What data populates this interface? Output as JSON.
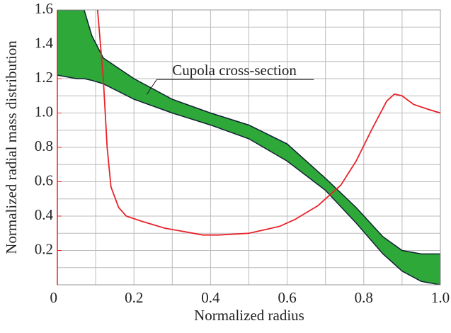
{
  "chart_data": {
    "type": "line",
    "xlabel": "Normalized radius",
    "ylabel": "Normalized radial mass distribution",
    "annotation": {
      "text": "Cupola cross-section",
      "x": 0.3,
      "y": 1.24
    },
    "xlim": [
      0,
      1.0
    ],
    "ylim": [
      0,
      1.6
    ],
    "xticks": [
      0,
      0.2,
      0.4,
      0.6,
      0.8,
      {
        "value": 1.0,
        "label": "1.0"
      }
    ],
    "yticks": [
      0.2,
      0.4,
      0.6,
      0.8,
      {
        "value": 1.0,
        "label": "1.0"
      },
      1.2,
      1.4,
      1.6
    ],
    "x_minor_grid": [
      0.1,
      0.3,
      0.5,
      0.7,
      0.9
    ],
    "y_minor_grid": [
      0.1,
      0.3,
      0.5,
      0.7,
      0.9,
      1.1,
      1.3,
      1.5
    ],
    "grid": true,
    "band": {
      "color": "#2fa83a",
      "x": [
        0,
        0.05,
        0.07,
        0.09,
        0.12,
        0.2,
        0.3,
        0.4,
        0.5,
        0.6,
        0.7,
        0.78,
        0.85,
        0.9,
        0.95,
        1.0
      ],
      "upper": [
        1.6,
        1.6,
        1.6,
        1.45,
        1.32,
        1.2,
        1.08,
        1.0,
        0.93,
        0.82,
        0.62,
        0.45,
        0.28,
        0.2,
        0.18,
        0.18
      ],
      "lower": [
        1.22,
        1.2,
        1.2,
        1.19,
        1.17,
        1.08,
        1.0,
        0.93,
        0.85,
        0.72,
        0.55,
        0.36,
        0.18,
        0.08,
        0.02,
        0.0
      ]
    },
    "series": [
      {
        "color": "#e8232a",
        "x": [
          0.105,
          0.12,
          0.13,
          0.14,
          0.16,
          0.18,
          0.22,
          0.28,
          0.38,
          0.42,
          0.5,
          0.58,
          0.62,
          0.68,
          0.74,
          0.78,
          0.82,
          0.86,
          0.88,
          0.9,
          0.93,
          0.97,
          1.0
        ],
        "values": [
          1.6,
          1.2,
          0.8,
          0.57,
          0.45,
          0.4,
          0.37,
          0.33,
          0.29,
          0.29,
          0.3,
          0.34,
          0.38,
          0.46,
          0.58,
          0.72,
          0.9,
          1.07,
          1.11,
          1.1,
          1.05,
          1.02,
          1.0
        ]
      }
    ]
  }
}
